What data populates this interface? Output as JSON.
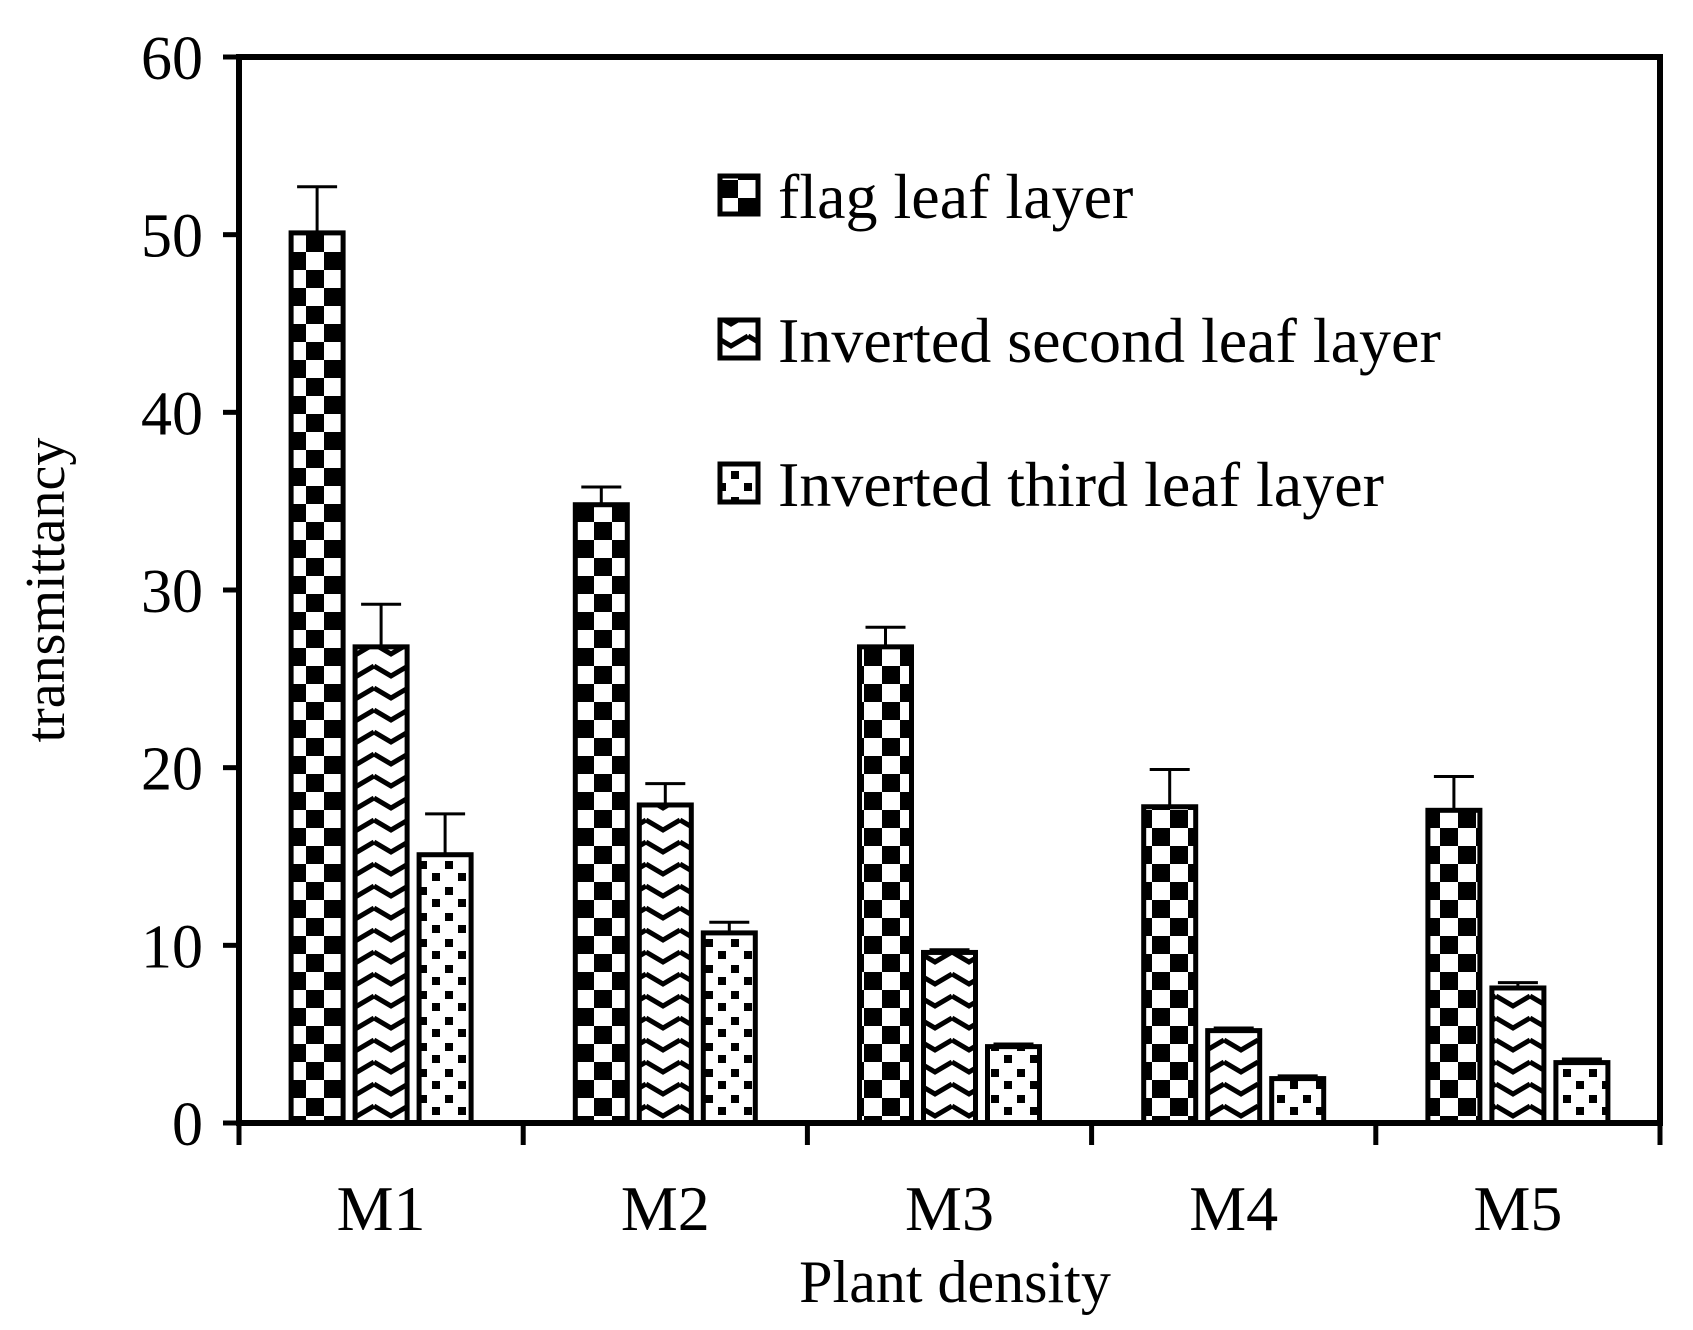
{
  "chart_data": {
    "type": "bar",
    "title": "",
    "xlabel": "Plant density",
    "ylabel": "transmittancy",
    "ylim": [
      0,
      60
    ],
    "yticks": [
      0,
      10,
      20,
      30,
      40,
      50,
      60
    ],
    "grid": false,
    "legend_position": "top-right",
    "error_bars": true,
    "categories": [
      "M1",
      "M2",
      "M3",
      "M4",
      "M5"
    ],
    "series": [
      {
        "name": "flag leaf layer",
        "pattern": "checker",
        "values": [
          50.1,
          34.8,
          26.8,
          17.8,
          17.6
        ],
        "errors": [
          2.6,
          1.0,
          1.1,
          2.1,
          1.9
        ]
      },
      {
        "name": "Inverted second leaf layer",
        "pattern": "chevron",
        "values": [
          26.8,
          17.9,
          9.6,
          5.2,
          7.6
        ],
        "errors": [
          2.4,
          1.2,
          0.15,
          0.15,
          0.3
        ]
      },
      {
        "name": "Inverted third leaf layer",
        "pattern": "dots",
        "values": [
          15.1,
          10.7,
          4.3,
          2.5,
          3.4
        ],
        "errors": [
          2.3,
          0.6,
          0.15,
          0.15,
          0.2
        ]
      }
    ]
  }
}
